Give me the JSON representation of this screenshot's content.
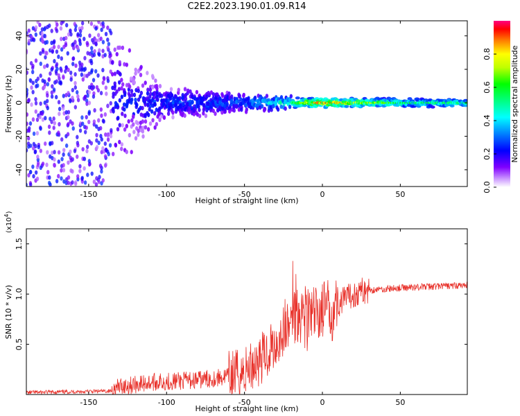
{
  "title": "C2E2.2023.190.01.09.R14",
  "chart_data": [
    {
      "type": "heatmap",
      "title": "C2E2.2023.190.01.09.R14",
      "xlabel": "Height of straight line (km)",
      "ylabel": "Frequency (Hz)",
      "xlim": [
        -190,
        93
      ],
      "ylim": [
        -50,
        49
      ],
      "xticks": [
        -150,
        -100,
        -50,
        0,
        50
      ],
      "yticks": [
        -40,
        -20,
        0,
        20,
        40
      ],
      "colorbar": {
        "label": "Normalized spectral amplitude",
        "range": [
          0.0,
          1.0
        ],
        "ticks": [
          0.0,
          0.2,
          0.4,
          0.6,
          0.8
        ]
      },
      "description_points": [
        {
          "height_km": -185,
          "freq_spread_hz": 49,
          "peak_amplitude": 0.25
        },
        {
          "height_km": -140,
          "freq_spread_hz": 49,
          "peak_amplitude": 0.25
        },
        {
          "height_km": -100,
          "freq_spread_hz": 10,
          "peak_amplitude": 0.3
        },
        {
          "height_km": -50,
          "freq_spread_hz": 6,
          "peak_amplitude": 0.35
        },
        {
          "height_km": -20,
          "freq_spread_hz": 4,
          "peak_amplitude": 0.6
        },
        {
          "height_km": 0,
          "freq_spread_hz": 3,
          "peak_amplitude": 0.95
        },
        {
          "height_km": 50,
          "freq_spread_hz": 3,
          "peak_amplitude": 0.6
        },
        {
          "height_km": 90,
          "freq_spread_hz": 3,
          "peak_amplitude": 0.55
        }
      ]
    },
    {
      "type": "line",
      "xlabel": "Height of straight line (km)",
      "ylabel": "SNR (10 * v/v)",
      "y_multiplier_label": "(x10",
      "y_multiplier_exp": "4",
      "y_multiplier_close": ")",
      "xlim": [
        -190,
        93
      ],
      "ylim": [
        0,
        16500
      ],
      "xticks": [
        -150,
        -100,
        -50,
        0,
        50
      ],
      "yticks": [
        0.5,
        1.0,
        1.5
      ],
      "ytick_labels": [
        "0.5",
        "1.0",
        "1.5"
      ],
      "color": "#e8312a",
      "x": [
        -190,
        -170,
        -150,
        -135,
        -130,
        -120,
        -110,
        -100,
        -90,
        -80,
        -70,
        -60,
        -50,
        -45,
        -40,
        -35,
        -30,
        -25,
        -20,
        -18,
        -15,
        -10,
        -5,
        0,
        5,
        10,
        15,
        20,
        25,
        30,
        40,
        50,
        60,
        70,
        80,
        90,
        93
      ],
      "y": [
        200,
        250,
        300,
        350,
        800,
        1000,
        1200,
        1300,
        1350,
        1450,
        1600,
        1800,
        2200,
        3000,
        3500,
        4200,
        5000,
        6200,
        7000,
        8000,
        8500,
        7500,
        7800,
        8500,
        8300,
        9000,
        9500,
        10000,
        10300,
        10400,
        10500,
        10600,
        10700,
        10750,
        10800,
        10850,
        10900
      ]
    }
  ]
}
